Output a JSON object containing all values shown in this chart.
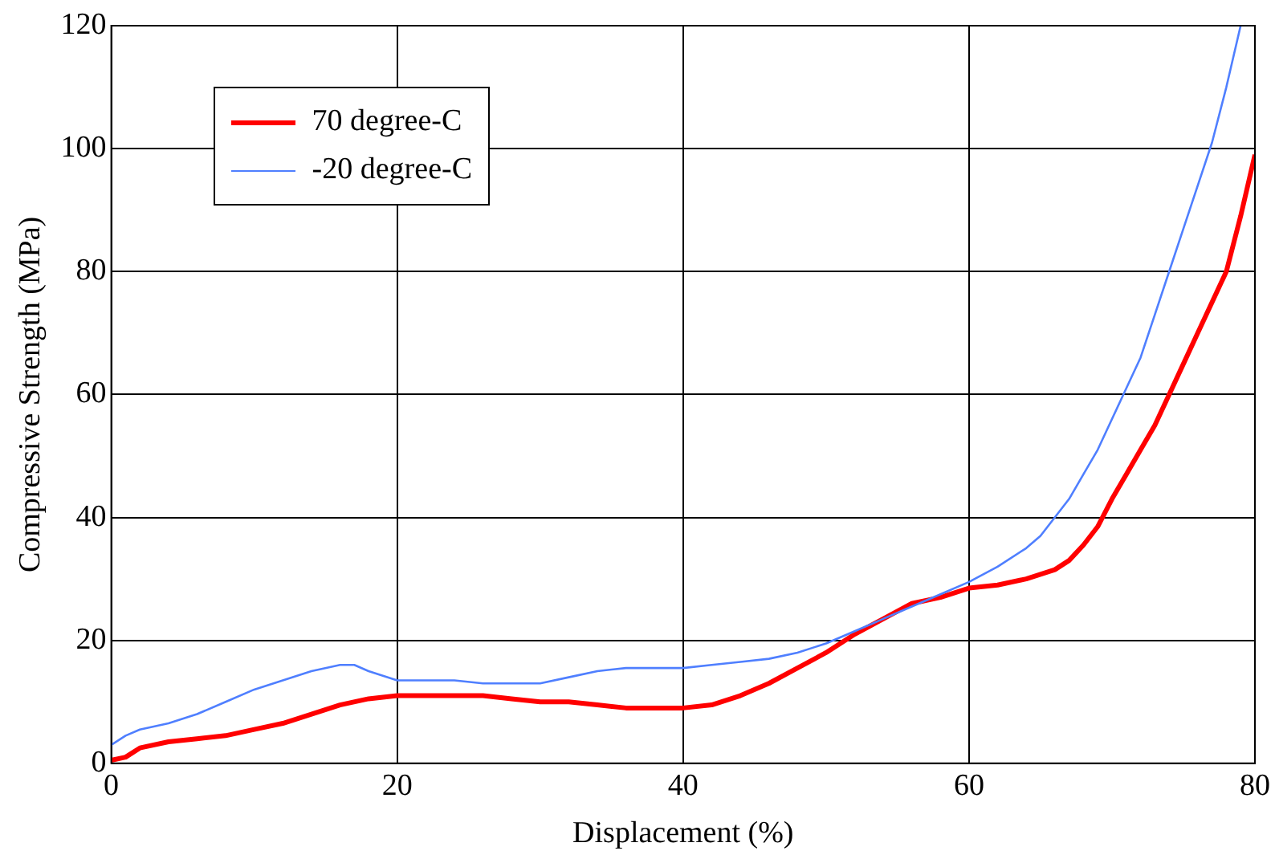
{
  "chart_data": {
    "type": "line",
    "xlabel": "Displacement (%)",
    "ylabel": "Compressive Strength (MPa)",
    "xlim": [
      0,
      80
    ],
    "xticks": [
      0,
      20,
      40,
      60,
      80
    ],
    "ylim": [
      0,
      120
    ],
    "yticks": [
      0,
      20,
      40,
      60,
      80,
      100,
      120
    ],
    "grid": true,
    "legend": "top left",
    "marker": "none",
    "line_style": "solid",
    "series": [
      {
        "name": "70 degree-C",
        "color": "#ff0000",
        "x": [
          0,
          1,
          2,
          4,
          6,
          8,
          10,
          12,
          14,
          16,
          18,
          20,
          22,
          24,
          26,
          28,
          30,
          32,
          34,
          36,
          38,
          40,
          42,
          44,
          46,
          48,
          50,
          52,
          54,
          56,
          58,
          60,
          62,
          64,
          66,
          67,
          68,
          69,
          70,
          71,
          72,
          73,
          74,
          75,
          76,
          77,
          78,
          79,
          80
        ],
        "values": [
          0.5,
          1,
          2.5,
          3.5,
          4,
          4.5,
          5.5,
          6.5,
          8,
          9.5,
          10.5,
          11,
          11,
          11,
          11,
          10.5,
          10,
          10,
          9.5,
          9,
          9,
          9,
          9.5,
          11,
          13,
          15.5,
          18,
          21,
          23.5,
          26,
          27,
          28.5,
          29,
          30,
          31.5,
          33,
          35.5,
          38.5,
          43,
          47,
          51,
          55,
          60,
          65,
          70,
          75,
          80,
          89,
          99
        ]
      },
      {
        "name": "-20 degree-C",
        "color": "#4f7fff",
        "x": [
          0,
          1,
          2,
          4,
          6,
          8,
          10,
          12,
          14,
          16,
          17,
          18,
          20,
          22,
          24,
          26,
          28,
          30,
          32,
          34,
          36,
          38,
          40,
          42,
          44,
          46,
          48,
          50,
          52,
          54,
          56,
          58,
          60,
          62,
          64,
          65,
          66,
          67,
          68,
          69,
          70,
          71,
          72,
          73,
          74,
          75,
          76,
          77,
          78,
          79
        ],
        "values": [
          3,
          4.5,
          5.5,
          6.5,
          8,
          10,
          12,
          13.5,
          15,
          16,
          16,
          15,
          13.5,
          13.5,
          13.5,
          13,
          13,
          13,
          14,
          15,
          15.5,
          15.5,
          15.5,
          16,
          16.5,
          17,
          18,
          19.5,
          21.5,
          23.5,
          25.5,
          27.5,
          29.5,
          32,
          35,
          37,
          40,
          43,
          47,
          51,
          56,
          61,
          66,
          73,
          80,
          87,
          94,
          101,
          110,
          120
        ]
      }
    ]
  }
}
